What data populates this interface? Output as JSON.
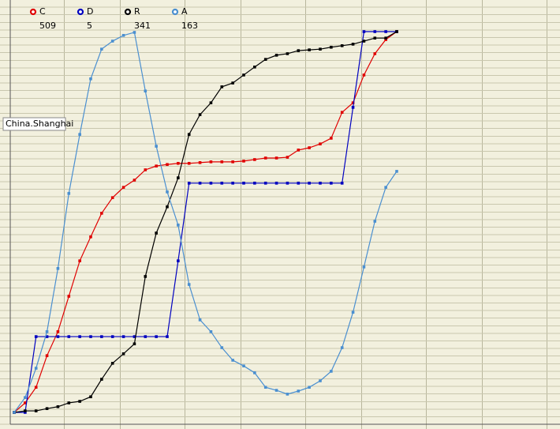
{
  "chart_data": {
    "type": "line",
    "annotation": "China.Shanghai",
    "x": [
      0,
      1,
      2,
      3,
      4,
      5,
      6,
      7,
      8,
      9,
      10,
      11,
      12,
      13,
      14,
      15,
      16,
      17,
      18,
      19,
      20,
      21,
      22,
      23,
      24,
      25,
      26,
      27,
      28,
      29,
      30,
      31,
      32,
      33,
      34,
      35
    ],
    "xlim": [
      0,
      35
    ],
    "ylim": [
      0,
      100
    ],
    "series": [
      {
        "name": "C",
        "legend_value": 509,
        "color": "#e00000",
        "values": [
          0,
          2.5,
          6.6,
          14.9,
          21.2,
          30.5,
          39.8,
          46.1,
          52.3,
          56.4,
          59.1,
          61.0,
          63.7,
          64.7,
          65.1,
          65.4,
          65.4,
          65.6,
          65.8,
          65.8,
          65.8,
          66.0,
          66.4,
          66.8,
          66.8,
          67.0,
          68.9,
          69.5,
          70.5,
          72.0,
          78.8,
          81.3,
          88.6,
          94.2,
          97.9,
          100
        ]
      },
      {
        "name": "D",
        "legend_value": 5,
        "color": "#0000c0",
        "values": [
          0,
          0,
          19.9,
          19.9,
          19.9,
          19.9,
          19.9,
          19.9,
          19.9,
          19.9,
          19.9,
          19.9,
          19.9,
          19.9,
          19.9,
          39.8,
          60.2,
          60.2,
          60.2,
          60.2,
          60.2,
          60.2,
          60.2,
          60.2,
          60.2,
          60.2,
          60.2,
          60.2,
          60.2,
          60.2,
          60.2,
          80.1,
          100,
          100,
          100,
          100
        ]
      },
      {
        "name": "R",
        "legend_value": 341,
        "color": "#000000",
        "values": [
          0,
          0.4,
          0.4,
          1.0,
          1.5,
          2.5,
          2.9,
          4.1,
          8.7,
          12.9,
          15.4,
          18.0,
          35.7,
          47.1,
          54.0,
          61.6,
          73.0,
          78.2,
          81.3,
          85.5,
          86.5,
          88.6,
          90.7,
          92.7,
          93.8,
          94.2,
          95.0,
          95.2,
          95.4,
          95.9,
          96.3,
          96.7,
          97.5,
          98.3,
          98.3,
          100
        ]
      },
      {
        "name": "A",
        "legend_value": 163,
        "color": "#4a8fd0",
        "values": [
          0,
          3.9,
          11.6,
          21.2,
          37.8,
          57.5,
          73.0,
          87.6,
          95.4,
          97.5,
          99.0,
          99.8,
          84.4,
          69.9,
          57.9,
          49.2,
          33.6,
          24.3,
          21.2,
          17.0,
          13.7,
          12.2,
          10.4,
          6.6,
          5.8,
          4.8,
          5.6,
          6.6,
          8.3,
          10.8,
          17.0,
          26.3,
          38.2,
          50.2,
          59.1,
          63.3
        ]
      }
    ]
  }
}
